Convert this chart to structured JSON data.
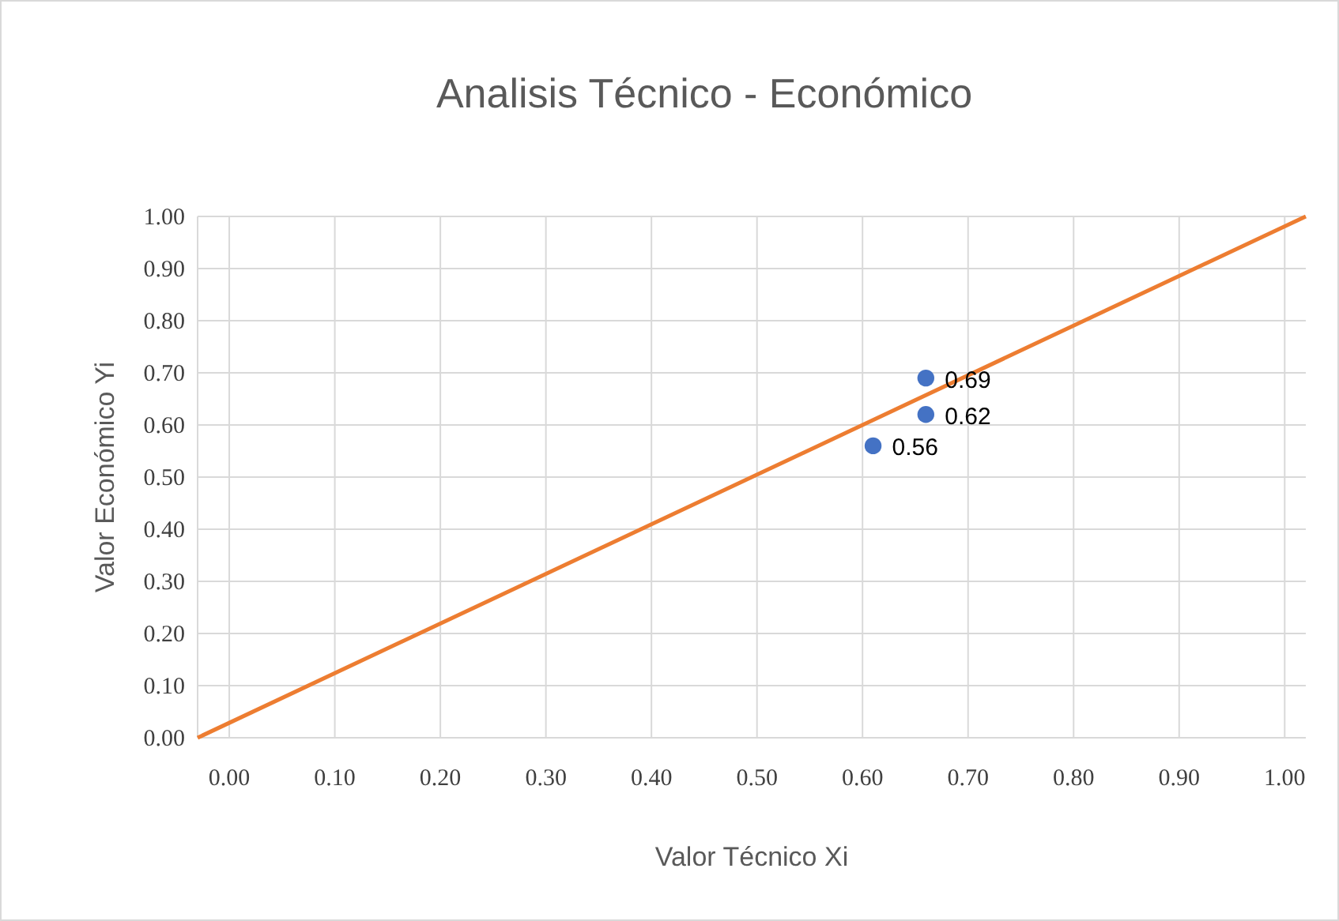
{
  "chart_data": {
    "type": "scatter",
    "title": "Analisis Técnico - Económico",
    "xlabel": "Valor Técnico Xi",
    "ylabel": "Valor Económico Yi",
    "xlim": [
      -0.03,
      1.02
    ],
    "ylim": [
      0,
      1
    ],
    "xticks": [
      {
        "value": 0,
        "label": "0.00"
      },
      {
        "value": 0.1,
        "label": "0.10"
      },
      {
        "value": 0.2,
        "label": "0.20"
      },
      {
        "value": 0.3,
        "label": "0.30"
      },
      {
        "value": 0.4,
        "label": "0.40"
      },
      {
        "value": 0.5,
        "label": "0.50"
      },
      {
        "value": 0.6,
        "label": "0.60"
      },
      {
        "value": 0.7,
        "label": "0.70"
      },
      {
        "value": 0.8,
        "label": "0.80"
      },
      {
        "value": 0.9,
        "label": "0.90"
      },
      {
        "value": 1,
        "label": "1.00"
      }
    ],
    "yticks": [
      {
        "value": 0,
        "label": "0.00"
      },
      {
        "value": 0.1,
        "label": "0.10"
      },
      {
        "value": 0.2,
        "label": "0.20"
      },
      {
        "value": 0.3,
        "label": "0.30"
      },
      {
        "value": 0.4,
        "label": "0.40"
      },
      {
        "value": 0.5,
        "label": "0.50"
      },
      {
        "value": 0.6,
        "label": "0.60"
      },
      {
        "value": 0.7,
        "label": "0.70"
      },
      {
        "value": 0.8,
        "label": "0.80"
      },
      {
        "value": 0.9,
        "label": "0.90"
      },
      {
        "value": 1,
        "label": "1.00"
      }
    ],
    "grid": true,
    "series": [
      {
        "type": "line",
        "color": "#ed7d31",
        "x": [
          -0.03,
          1.02
        ],
        "values": [
          0,
          1
        ]
      },
      {
        "marker": "circle",
        "color": "#4472c4",
        "x": [
          0.66,
          0.66,
          0.61
        ],
        "values": [
          0.69,
          0.62,
          0.56
        ],
        "data_labels": true
      }
    ]
  }
}
